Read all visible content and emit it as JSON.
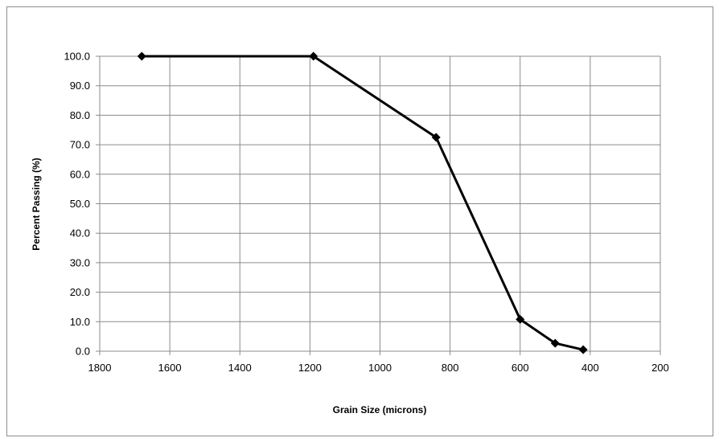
{
  "chart_data": {
    "type": "scatter",
    "title": "",
    "xlabel": "Grain Size  (microns)",
    "ylabel": "Percent Passing  (%)",
    "x_reversed": true,
    "xlim": [
      1800,
      200
    ],
    "ylim": [
      0,
      100
    ],
    "xticks": [
      1800,
      1600,
      1400,
      1200,
      1000,
      800,
      600,
      400,
      200
    ],
    "yticks": [
      0.0,
      10.0,
      20.0,
      30.0,
      40.0,
      50.0,
      60.0,
      70.0,
      80.0,
      90.0,
      100.0
    ],
    "ytick_labels": [
      "0.0",
      "10.0",
      "20.0",
      "30.0",
      "40.0",
      "50.0",
      "60.0",
      "70.0",
      "80.0",
      "90.0",
      "100.0"
    ],
    "xtick_labels": [
      "1800",
      "1600",
      "1400",
      "1200",
      "1000",
      "800",
      "600",
      "400",
      "200"
    ],
    "grid": "vertical-and-horizontal",
    "legend": "none",
    "marker": "diamond",
    "line_color": "#000000",
    "series": [
      {
        "x": [
          1680,
          1190,
          840,
          600,
          500,
          420
        ],
        "y": [
          100.0,
          100.0,
          72.5,
          10.8,
          2.7,
          0.5
        ]
      }
    ]
  }
}
